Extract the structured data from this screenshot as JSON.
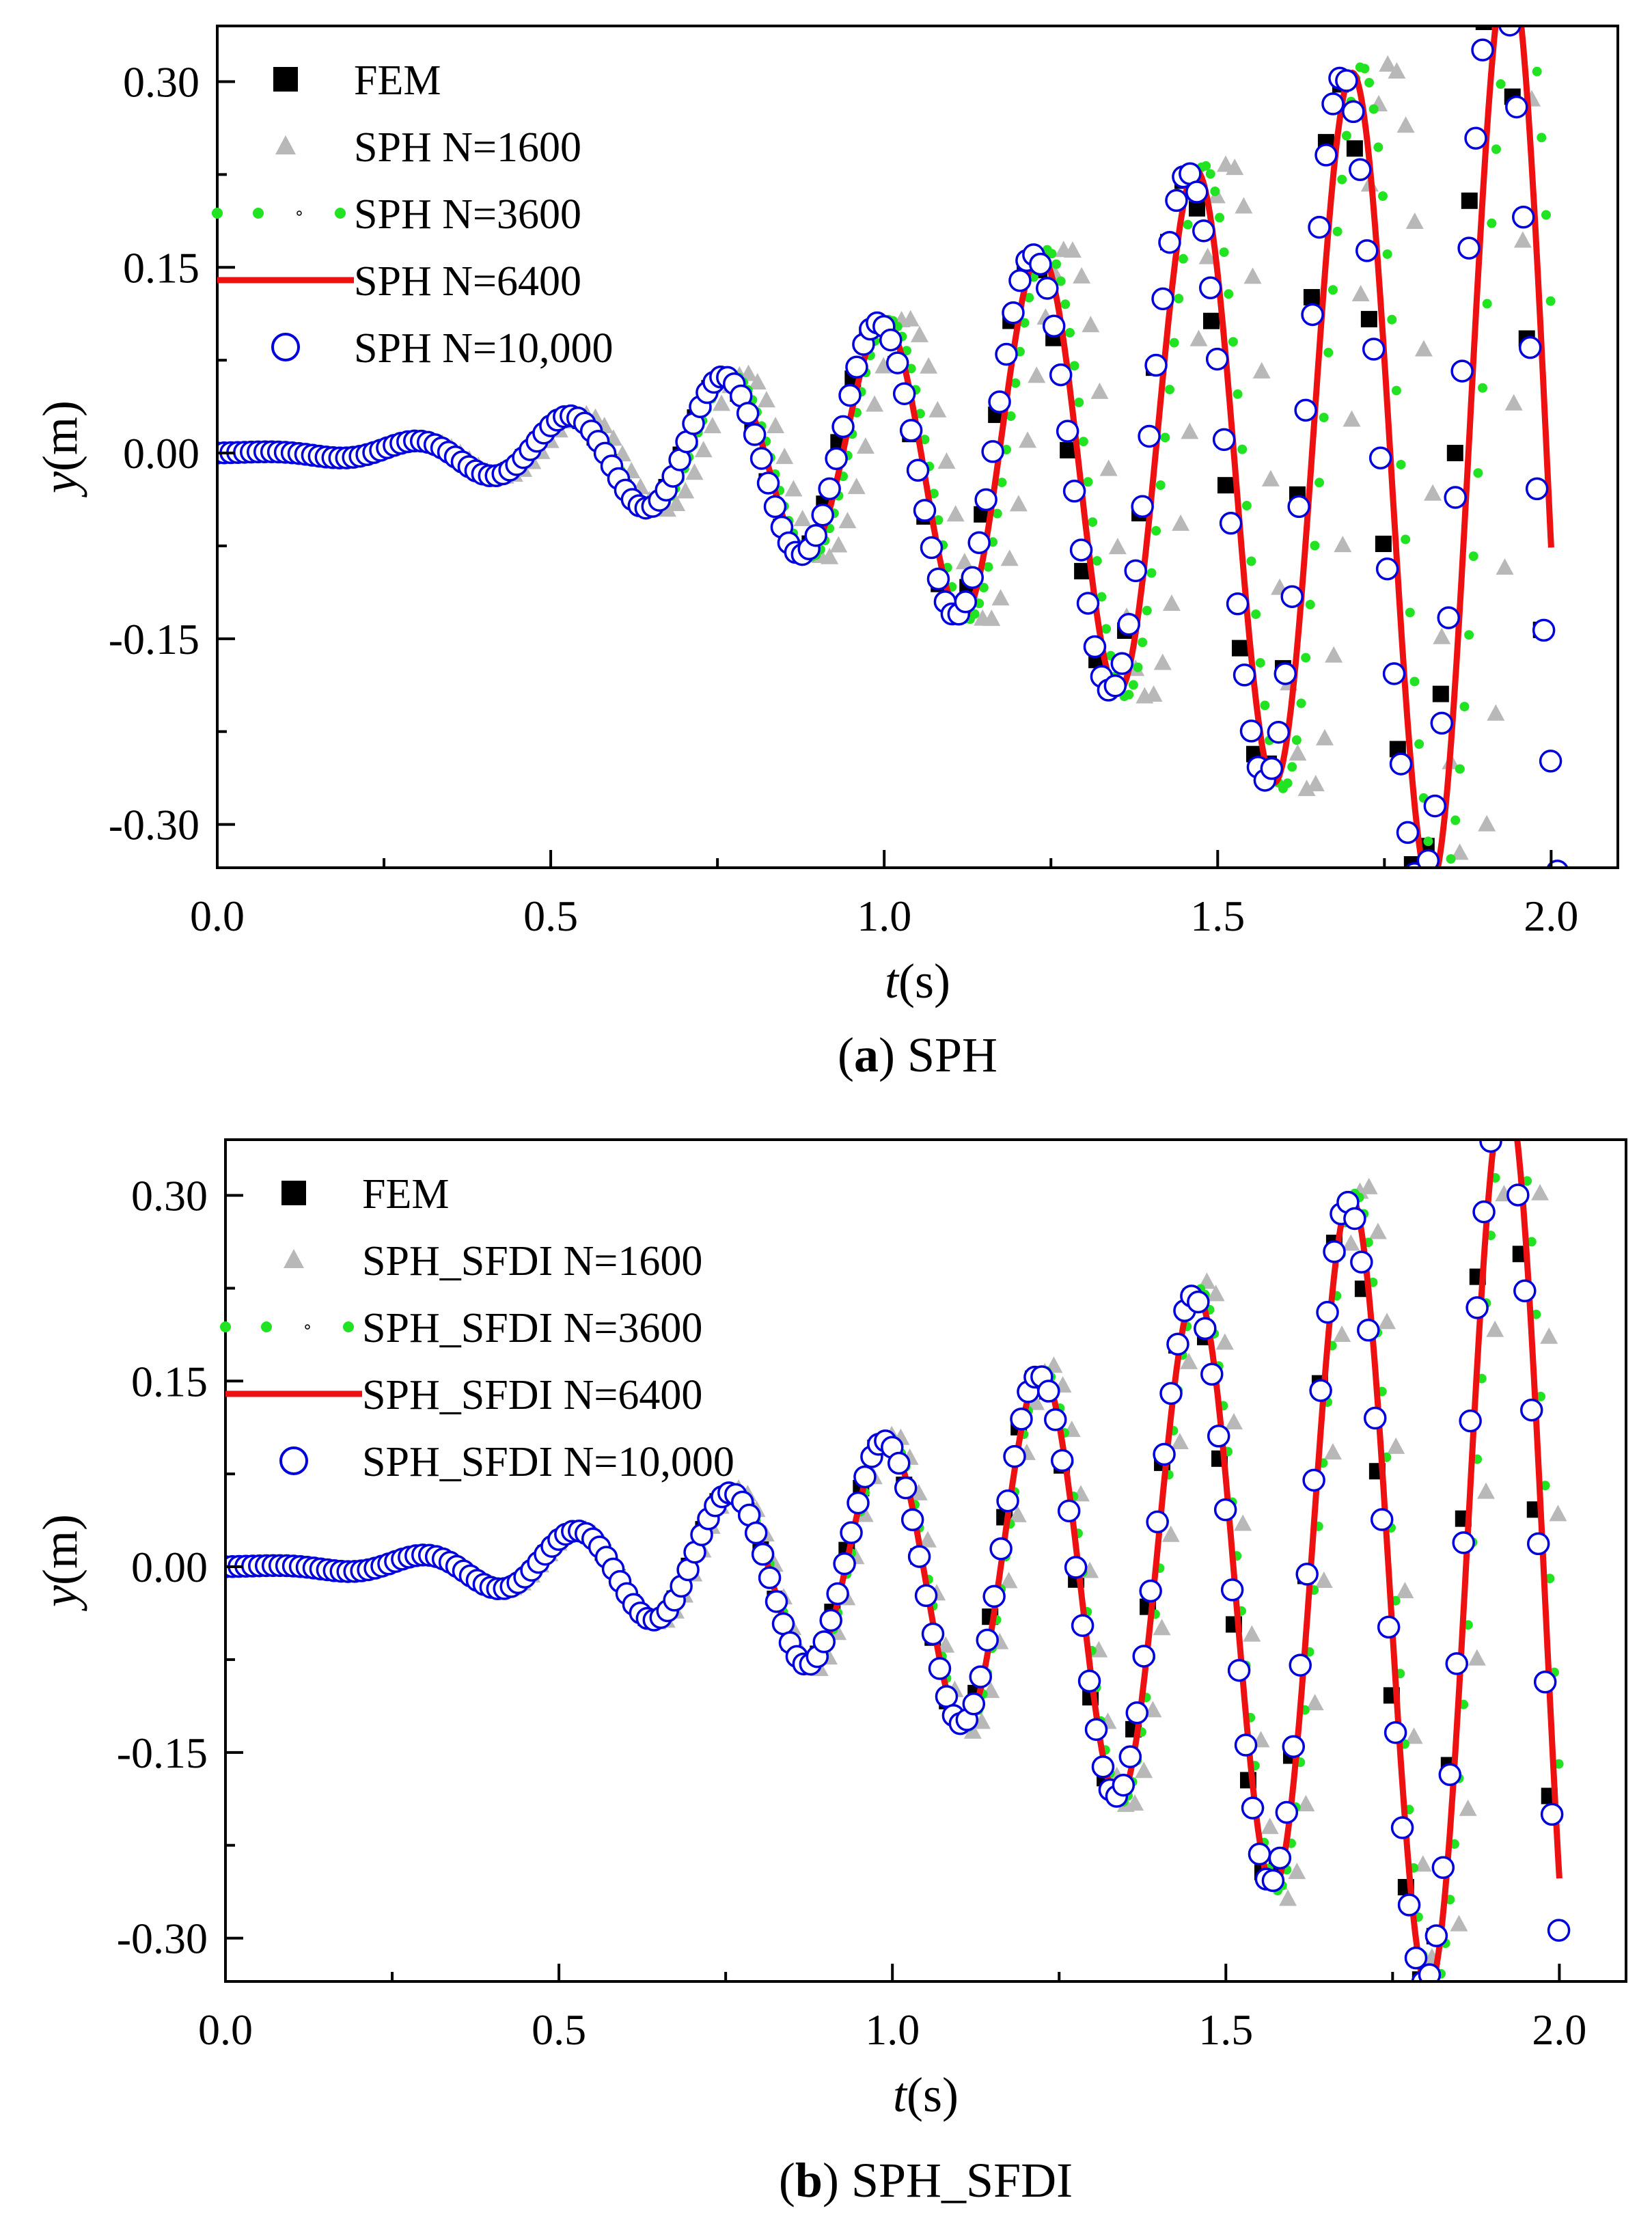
{
  "colors": {
    "fem": "#000000",
    "n1600": "#b8b8b8",
    "n3600": "#22e322",
    "n6400": "#ee1111",
    "n10000": "#0000dd",
    "axis": "#000000"
  },
  "chart_data": [
    {
      "type": "line",
      "caption_bold": "a",
      "caption_rest": "SPH",
      "xlabel_italic": "t",
      "xlabel_rest": "(s)",
      "ylabel_italic": "y",
      "ylabel_rest": "(m)",
      "xlim": [
        0.0,
        2.1
      ],
      "ylim": [
        -0.335,
        0.345
      ],
      "xticks": [
        0.0,
        0.5,
        1.0,
        1.5,
        2.0
      ],
      "xtick_labels": [
        "0.0",
        "0.5",
        "1.0",
        "1.5",
        "2.0"
      ],
      "yticks": [
        0.3,
        0.15,
        0.0,
        -0.15,
        -0.3
      ],
      "ytick_labels": [
        "0.30",
        "0.15",
        "0.00",
        "-0.15",
        "-0.30"
      ],
      "legend_position": "top-left",
      "series": [
        {
          "name": "FEM",
          "marker": "square",
          "t_end": 2.0,
          "period": 0.232,
          "amp_growth": 0.105,
          "amp_base": 0.0005,
          "phase": 0.0,
          "sampling": 0.0215,
          "t_start": 0.05
        },
        {
          "name": "SPH N=1600",
          "marker": "triangle",
          "t_end": 2.0,
          "period": 0.2425,
          "amp_growth": 0.102,
          "amp_base": 0.0005,
          "phase": 0.0,
          "sampling": 0.0135,
          "t_start": 0.0
        },
        {
          "name": "SPH N=3600",
          "marker": "dot",
          "t_end": 2.0,
          "period": 0.2365,
          "amp_growth": 0.106,
          "amp_base": 0.0005,
          "phase": 0.0,
          "sampling": 0.0068,
          "t_start": 0.0
        },
        {
          "name": "SPH N=6400",
          "marker": "line",
          "t_end": 2.0,
          "period": 0.2345,
          "amp_growth": 0.106,
          "amp_base": 0.0005,
          "phase": 0.0,
          "sampling": 0.002,
          "t_start": 0.0
        },
        {
          "name": "SPH N=10,000",
          "marker": "circle",
          "t_end": 2.02,
          "period": 0.2325,
          "amp_growth": 0.107,
          "amp_base": 0.0005,
          "phase": 0.0,
          "sampling": 0.0102,
          "t_start": 0.0
        }
      ]
    },
    {
      "type": "line",
      "caption_bold": "b",
      "caption_rest": "SPH_SFDI",
      "xlabel_italic": "t",
      "xlabel_rest": "(s)",
      "ylabel_italic": "y",
      "ylabel_rest": "(m)",
      "xlim": [
        0.0,
        2.1
      ],
      "ylim": [
        -0.335,
        0.345
      ],
      "xticks": [
        0.0,
        0.5,
        1.0,
        1.5,
        2.0
      ],
      "xtick_labels": [
        "0.0",
        "0.5",
        "1.0",
        "1.5",
        "2.0"
      ],
      "yticks": [
        0.3,
        0.15,
        0.0,
        -0.15,
        -0.3
      ],
      "ytick_labels": [
        "0.30",
        "0.15",
        "0.00",
        "-0.15",
        "-0.30"
      ],
      "legend_position": "top-left",
      "series": [
        {
          "name": "FEM",
          "marker": "square",
          "t_end": 2.0,
          "period": 0.2315,
          "amp_growth": 0.104,
          "amp_base": 0.0005,
          "phase": 0.0,
          "sampling": 0.0215,
          "t_start": 0.05
        },
        {
          "name": "SPH_SFDI N=1600",
          "marker": "triangle",
          "t_end": 2.0,
          "period": 0.2355,
          "amp_growth": 0.106,
          "amp_base": 0.0005,
          "phase": 0.0,
          "sampling": 0.0135,
          "t_start": 0.0
        },
        {
          "name": "SPH_SFDI N=3600",
          "marker": "dot",
          "t_end": 2.0,
          "period": 0.2335,
          "amp_growth": 0.105,
          "amp_base": 0.0005,
          "phase": 0.0,
          "sampling": 0.0068,
          "t_start": 0.0
        },
        {
          "name": "SPH_SFDI N=6400",
          "marker": "line",
          "t_end": 2.0,
          "period": 0.2325,
          "amp_growth": 0.105,
          "amp_base": 0.0005,
          "phase": 0.0,
          "sampling": 0.002,
          "t_start": 0.0
        },
        {
          "name": "SPH_SFDI N=10,000",
          "marker": "circle",
          "t_end": 2.0,
          "period": 0.2318,
          "amp_growth": 0.104,
          "amp_base": 0.0005,
          "phase": 0.0,
          "sampling": 0.0102,
          "t_start": 0.0
        }
      ]
    }
  ]
}
